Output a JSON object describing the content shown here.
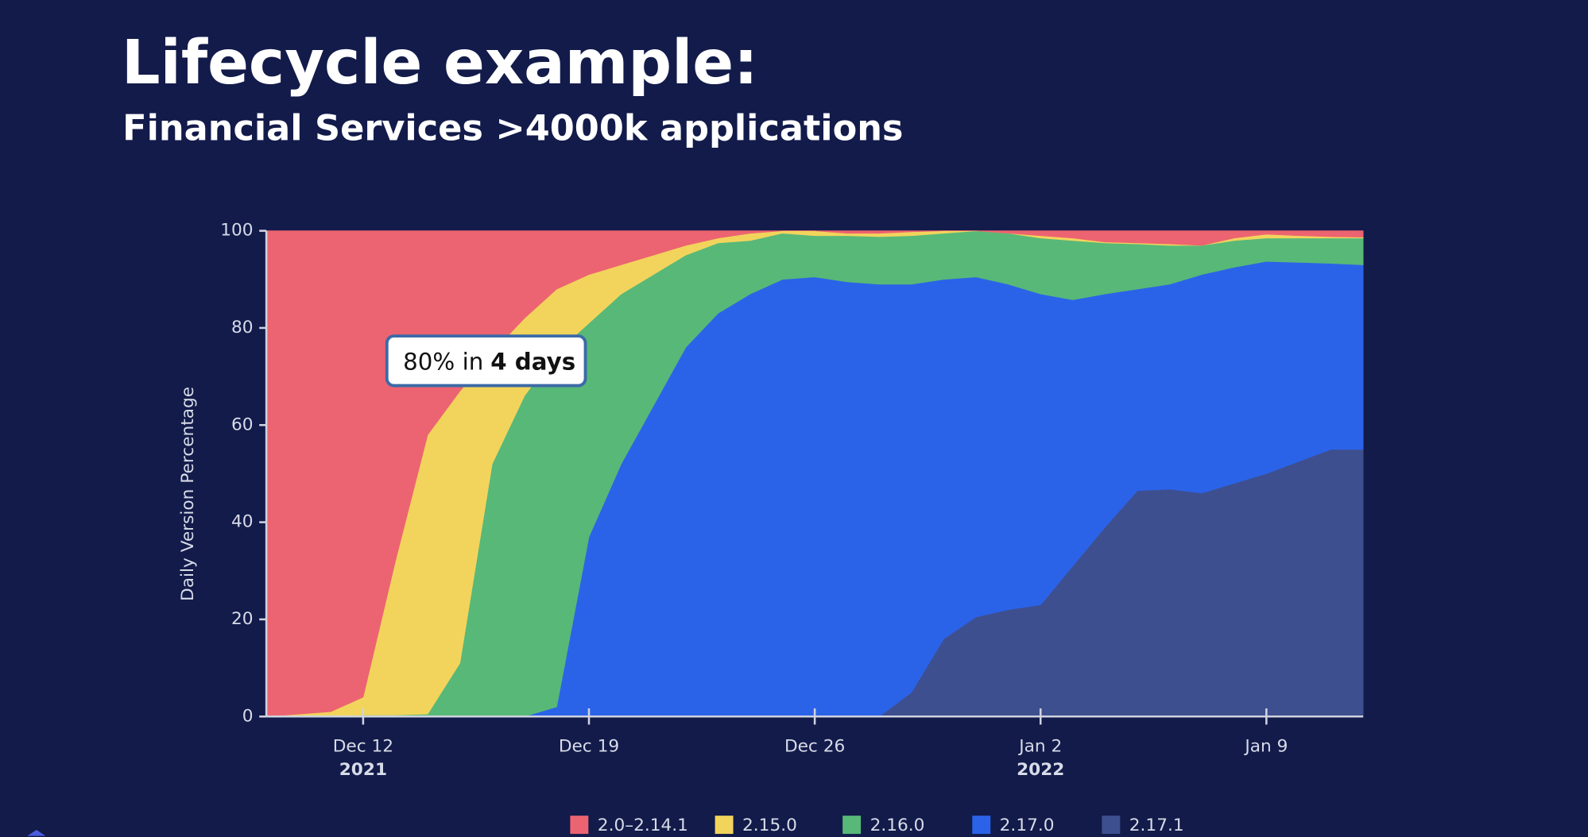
{
  "chart_data": {
    "type": "stacked_area",
    "title": "Lifecycle example:",
    "subtitle": "Financial Services >4000k applications",
    "y_label": "Daily Version Percentage",
    "annotation": [
      "80% in",
      "4 days"
    ],
    "x": [
      "2021-12-09",
      "2021-12-10",
      "2021-12-11",
      "2021-12-12",
      "2021-12-13",
      "2021-12-14",
      "2021-12-15",
      "2021-12-16",
      "2021-12-17",
      "2021-12-18",
      "2021-12-19",
      "2021-12-20",
      "2021-12-21",
      "2021-12-22",
      "2021-12-23",
      "2021-12-24",
      "2021-12-25",
      "2021-12-26",
      "2021-12-27",
      "2021-12-28",
      "2021-12-29",
      "2021-12-30",
      "2021-12-31",
      "2022-01-01",
      "2022-01-02",
      "2022-01-03",
      "2022-01-04",
      "2022-01-05",
      "2022-01-06",
      "2022-01-07",
      "2022-01-08",
      "2022-01-09",
      "2022-01-10",
      "2022-01-11",
      "2022-01-12"
    ],
    "series": [
      {
        "name": "2.0–2.14.1",
        "color": "#ec6471",
        "values": [
          100,
          99.5,
          99,
          96,
          68,
          42,
          33,
          25,
          18,
          12,
          9,
          7,
          5,
          3,
          1.5,
          0.5,
          0,
          0,
          0.5,
          0.5,
          0.2,
          0,
          0,
          0.5,
          1,
          1.5,
          2.3,
          2.5,
          2.7,
          3,
          1.5,
          0.7,
          1,
          1.2,
          1.3
        ]
      },
      {
        "name": "2.15.0",
        "color": "#f2d45c",
        "values": [
          0,
          0.5,
          1,
          3.7,
          31.7,
          57.5,
          56,
          23,
          16,
          13,
          10,
          6,
          4,
          2,
          1,
          1.5,
          0.5,
          1,
          0.5,
          0.7,
          0.8,
          0.5,
          0,
          0,
          0.5,
          0.5,
          0.2,
          0.2,
          0.3,
          0,
          0.5,
          0.8,
          0.5,
          0.3,
          0.2
        ]
      },
      {
        "name": "2.16.0",
        "color": "#58b878",
        "values": [
          0,
          0,
          0,
          0.3,
          0.3,
          0.5,
          11,
          52,
          66,
          73,
          44,
          35,
          27,
          19,
          14.5,
          11,
          9.5,
          8.5,
          9.5,
          9.8,
          10,
          9.5,
          9.5,
          10.5,
          11.5,
          12.2,
          10.5,
          9.3,
          8,
          6,
          5.5,
          4.8,
          5,
          5.2,
          5.5
        ]
      },
      {
        "name": "2.17.0",
        "color": "#2b63e8",
        "values": [
          0,
          0,
          0,
          0,
          0,
          0,
          0,
          0,
          0,
          2,
          37,
          52,
          64,
          76,
          83,
          87,
          90,
          90.5,
          89.5,
          89,
          84,
          74,
          70,
          67,
          64,
          54.8,
          48,
          41.5,
          42.2,
          45,
          44.5,
          43.7,
          41,
          38.3,
          38
        ]
      },
      {
        "name": "2.17.1",
        "color": "#3e4f8f",
        "values": [
          0,
          0,
          0,
          0,
          0,
          0,
          0,
          0,
          0,
          0,
          0,
          0,
          0,
          0,
          0,
          0,
          0,
          0,
          0,
          0,
          5,
          16,
          20.5,
          22,
          23,
          31,
          39,
          46.5,
          46.8,
          46,
          48,
          50,
          52.5,
          55,
          55
        ]
      }
    ],
    "xlim": [
      "2021-12-09",
      "2022-01-12"
    ],
    "xticks": [
      {
        "value": "2021-12-12",
        "label": "Dec 12"
      },
      {
        "value": "2021-12-19",
        "label": "Dec 19"
      },
      {
        "value": "2021-12-26",
        "label": "Dec 26"
      },
      {
        "value": "2022-01-02",
        "label": "Jan 2"
      },
      {
        "value": "2022-01-09",
        "label": "Jan 9"
      }
    ],
    "year_labels": [
      {
        "value": "2021-12-12",
        "label": "2021"
      },
      {
        "value": "2022-01-02",
        "label": "2022"
      }
    ],
    "ylim": [
      0,
      100
    ],
    "yticks": [
      0,
      20,
      40,
      60,
      80,
      100
    ],
    "grid": false
  }
}
